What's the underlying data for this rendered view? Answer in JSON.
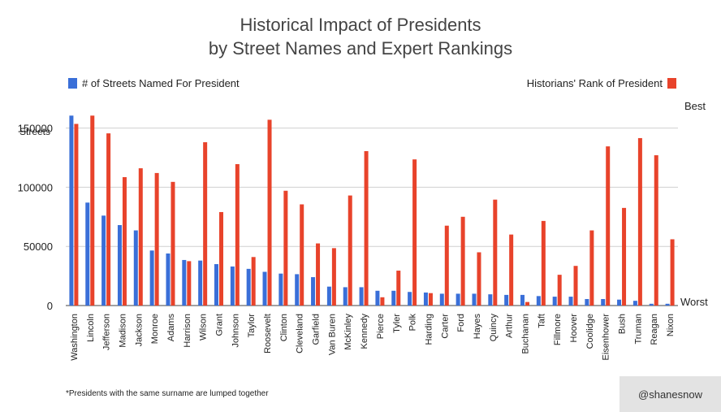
{
  "title_line1": "Historical Impact of Presidents",
  "title_line2": "by Street Names and Expert Rankings",
  "legend_left": "# of Streets Named For President",
  "legend_right": "Historians' Rank of President",
  "right_axis_top": "Best",
  "right_axis_bottom": "Worst",
  "footnote": "*Presidents with the same surname are lumped together",
  "credit": "@shanesnow",
  "colors": {
    "streets": "#3a6fd8",
    "rank": "#e8432b",
    "grid": "#cfcfcf"
  },
  "chart_data": {
    "type": "bar",
    "ylabel": "Streets",
    "ylim": [
      0,
      160000
    ],
    "yticks": [
      0,
      50000,
      100000,
      150000
    ],
    "ytick_labels": [
      "0",
      "50000",
      "100000",
      "150000"
    ],
    "legend_placement": "top",
    "grid": true,
    "categories": [
      "Washington",
      "Lincoln",
      "Jefferson",
      "Madison",
      "Jackson",
      "Monroe",
      "Adams",
      "Harrison",
      "Wilson",
      "Grant",
      "Johnson",
      "Taylor",
      "Roosevelt",
      "Clinton",
      "Cleveland",
      "Garfield",
      "Van Buren",
      "McKinley",
      "Kennedy",
      "Pierce",
      "Tyler",
      "Polk",
      "Harding",
      "Carter",
      "Ford",
      "Hayes",
      "Quincy",
      "Arthur",
      "Buchanan",
      "Taft",
      "Fillmore",
      "Hoover",
      "Coolidge",
      "Eisenhower",
      "Bush",
      "Truman",
      "Reagan",
      "Nixon"
    ],
    "series": [
      {
        "name": "# of Streets Named For President",
        "values": [
          160500,
          87000,
          76000,
          68000,
          63500,
          46500,
          44000,
          38500,
          38000,
          35000,
          33000,
          31000,
          28500,
          27000,
          26500,
          24000,
          16000,
          15500,
          15500,
          12500,
          12500,
          11500,
          11000,
          10000,
          10000,
          10000,
          9500,
          9000,
          9000,
          8000,
          7500,
          7500,
          5500,
          5500,
          5000,
          4000,
          1500,
          1500
        ]
      },
      {
        "name": "Historians' Rank of President",
        "values": [
          153500,
          160500,
          145500,
          108500,
          116000,
          112000,
          104500,
          37500,
          138000,
          79000,
          119500,
          41000,
          157000,
          97000,
          85500,
          52500,
          48500,
          93000,
          130500,
          7000,
          29500,
          123500,
          10500,
          67500,
          75000,
          45000,
          89500,
          60000,
          3000,
          71500,
          26000,
          33500,
          63500,
          134500,
          82500,
          141500,
          127000,
          56000
        ]
      }
    ]
  }
}
